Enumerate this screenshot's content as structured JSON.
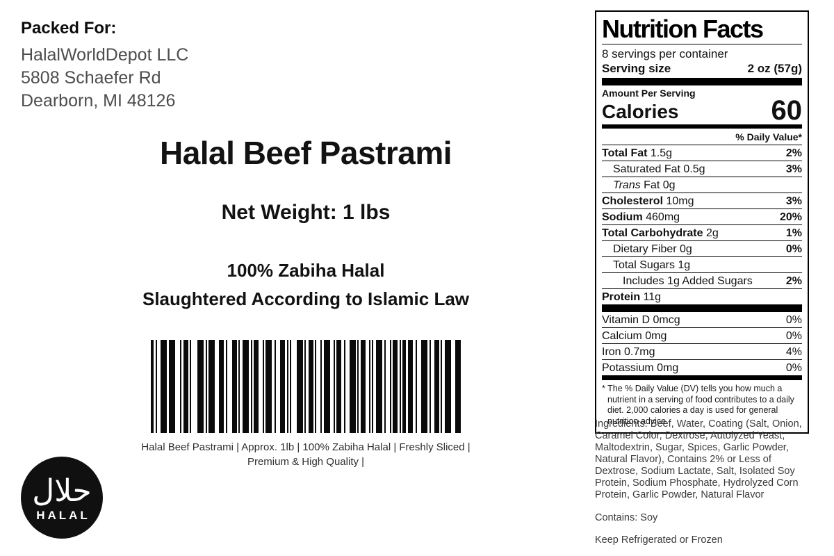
{
  "colors": {
    "ink": "#111111",
    "muted_text": "#4d4d4d",
    "logo_bg": "#101010"
  },
  "packed_for": {
    "label": "Packed For:",
    "company": "HalalWorldDepot LLC",
    "address1": "5808 Schaefer Rd",
    "address2": "Dearborn, MI 48126"
  },
  "product": {
    "title": "Halal Beef Pastrami",
    "net_weight": "Net Weight: 1 lbs",
    "halal_line1": "100% Zabiha Halal",
    "halal_line2": "Slaughtered According to Islamic Law"
  },
  "barcode": {
    "caption": "Halal Beef Pastrami | Approx. 1lb | 100% Zabiha Halal | Freshly Sliced | Premium & High Quality |",
    "bars": [
      [
        4,
        3
      ],
      [
        2,
        5
      ],
      [
        9,
        3
      ],
      [
        9,
        7
      ],
      [
        2,
        3
      ],
      [
        7,
        2
      ],
      [
        2,
        9
      ],
      [
        9,
        3
      ],
      [
        2,
        2
      ],
      [
        9,
        6
      ],
      [
        7,
        3
      ],
      [
        2,
        7
      ],
      [
        7,
        2
      ],
      [
        2,
        4
      ],
      [
        9,
        3
      ],
      [
        2,
        2
      ],
      [
        7,
        6
      ],
      [
        2,
        2
      ],
      [
        9,
        4
      ],
      [
        2,
        6
      ],
      [
        7,
        3
      ],
      [
        2,
        2
      ],
      [
        2,
        8
      ],
      [
        9,
        2
      ],
      [
        2,
        4
      ],
      [
        7,
        2
      ],
      [
        2,
        6
      ],
      [
        2,
        3
      ],
      [
        9,
        5
      ],
      [
        2,
        2
      ],
      [
        7,
        4
      ],
      [
        2,
        6
      ],
      [
        9,
        2
      ],
      [
        2,
        3
      ],
      [
        7,
        5
      ],
      [
        2,
        2
      ],
      [
        2,
        4
      ],
      [
        9,
        3
      ],
      [
        2,
        6
      ],
      [
        2,
        2
      ],
      [
        7,
        3
      ],
      [
        2,
        2
      ],
      [
        5,
        3
      ],
      [
        7,
        4
      ],
      [
        2,
        6
      ],
      [
        9,
        3
      ],
      [
        2,
        5
      ],
      [
        7,
        2
      ],
      [
        2,
        4
      ],
      [
        9,
        6
      ],
      [
        8,
        0
      ]
    ]
  },
  "halal_logo": {
    "arabic": "حلال",
    "text": "HALAL"
  },
  "nutrition": {
    "title": "Nutrition Facts",
    "servings_per_container": "8 servings per container",
    "serving_size_label": "Serving size",
    "serving_size_value": "2 oz (57g)",
    "amount_per_serving": "Amount Per Serving",
    "calories_label": "Calories",
    "calories_value": "60",
    "daily_value_header": "% Daily Value*",
    "rows": [
      {
        "name": "Total Fat",
        "amount": "1.5g",
        "dv": "2%",
        "bold": true,
        "indent": 0
      },
      {
        "name": "Saturated Fat",
        "amount": "0.5g",
        "dv": "3%",
        "bold": false,
        "indent": 1
      },
      {
        "name": "Fat",
        "italic_prefix": "Trans",
        "amount": "0g",
        "dv": "",
        "bold": false,
        "indent": 1
      },
      {
        "name": "Cholesterol",
        "amount": "10mg",
        "dv": "3%",
        "bold": true,
        "indent": 0
      },
      {
        "name": "Sodium",
        "amount": "460mg",
        "dv": "20%",
        "bold": true,
        "indent": 0
      },
      {
        "name": "Total Carbohydrate",
        "amount": "2g",
        "dv": "1%",
        "bold": true,
        "indent": 0
      },
      {
        "name": "Dietary Fiber",
        "amount": "0g",
        "dv": "0%",
        "bold": false,
        "indent": 1
      },
      {
        "name": "Total Sugars",
        "amount": "1g",
        "dv": "",
        "bold": false,
        "indent": 1
      },
      {
        "name": "Includes 1g Added Sugars",
        "amount": "",
        "dv": "2%",
        "bold": false,
        "indent": 2
      },
      {
        "name": "Protein",
        "amount": "11g",
        "dv": "",
        "bold": true,
        "indent": 0
      }
    ],
    "vitamins": [
      {
        "name": "Vitamin D 0mcg",
        "dv": "0%"
      },
      {
        "name": "Calcium 0mg",
        "dv": "0%"
      },
      {
        "name": "Iron 0.7mg",
        "dv": "4%"
      },
      {
        "name": "Potassium 0mg",
        "dv": "0%"
      }
    ],
    "footnote": "* The % Daily Value (DV) tells you how much a nutrient in a serving of food contributes to a daily diet. 2,000 calories a day is used for general nutrition advice."
  },
  "ingredients": {
    "text": "Ingredients: Beef, Water, Coating (Salt, Onion, Caramel Color, Dextrose, Autolyzed Yeast, Maltodextrin, Sugar, Spices, Garlic Powder, Natural Flavor), Contains 2% or Less of Dextrose, Sodium Lactate, Salt, Isolated Soy Protein, Sodium Phosphate, Hydrolyzed Corn Protein, Garlic Powder, Natural Flavor",
    "contains": "Contains: Soy",
    "storage": "Keep Refrigerated or Frozen"
  }
}
